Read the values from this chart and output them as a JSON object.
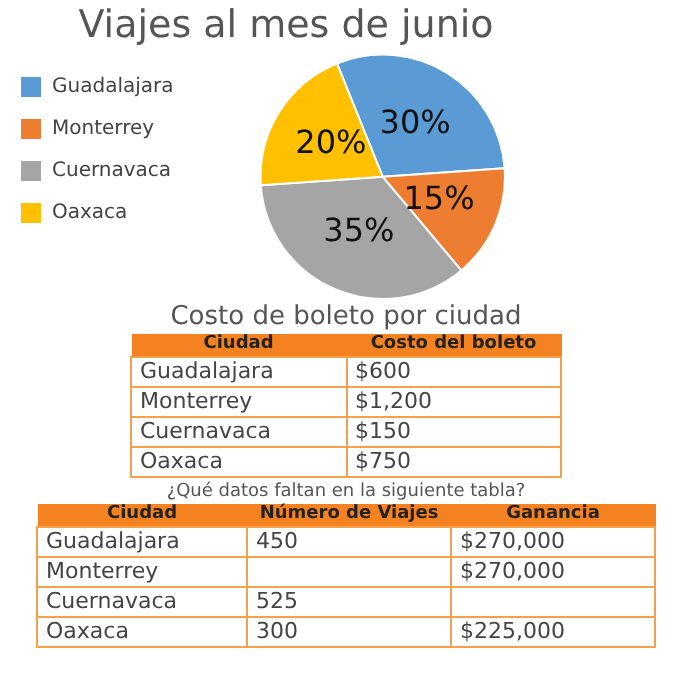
{
  "chart_data": [
    {
      "type": "pie",
      "title": "Viajes al mes de junio",
      "categories": [
        "Guadalajara",
        "Monterrey",
        "Cuernavaca",
        "Oaxaca"
      ],
      "values": [
        30,
        15,
        35,
        20
      ],
      "colors": [
        "#5b9bd5",
        "#ed7d31",
        "#a5a5a5",
        "#ffc000"
      ],
      "value_labels": [
        "30%",
        "15%",
        "35%",
        "20%"
      ],
      "legend": "left"
    },
    {
      "type": "other",
      "title": "Costo de boleto por ciudad",
      "categories": [
        "Ciudad",
        "Costo del boleto"
      ],
      "y_categories": [
        "Guadalajara",
        "Monterrey",
        "Cuernavaca",
        "Oaxaca"
      ],
      "cell_labels": [
        [
          "$600"
        ],
        [
          "$1,200"
        ],
        [
          "$150"
        ],
        [
          "$750"
        ]
      ]
    },
    {
      "type": "other",
      "title": "¿Qué datos faltan en la siguiente tabla?",
      "categories": [
        "Ciudad",
        "Número de Viajes",
        "Ganancia"
      ],
      "y_categories": [
        "Guadalajara",
        "Monterrey",
        "Cuernavaca",
        "Oaxaca"
      ],
      "cell_labels": [
        [
          "450",
          "$270,000"
        ],
        [
          null,
          "$270,000"
        ],
        [
          "525",
          null
        ],
        [
          "300",
          "$225,000"
        ]
      ]
    }
  ]
}
